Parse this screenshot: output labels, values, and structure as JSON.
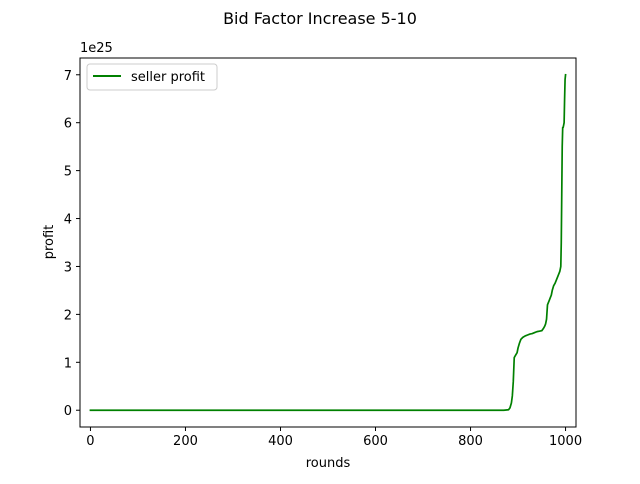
{
  "chart_data": {
    "type": "line",
    "title": "Bid Factor Increase 5-10",
    "xlabel": "rounds",
    "ylabel": "profit",
    "y_offset_label": "1e25",
    "y_multiplier": 1e+25,
    "xlim": [
      -22,
      1022
    ],
    "ylim": [
      -0.35,
      7.35
    ],
    "x_ticks": [
      0,
      200,
      400,
      600,
      800,
      1000
    ],
    "x_tick_labels": [
      "0",
      "200",
      "400",
      "600",
      "800",
      "1000"
    ],
    "y_ticks": [
      0,
      1,
      2,
      3,
      4,
      5,
      6,
      7
    ],
    "y_tick_labels": [
      "0",
      "1",
      "2",
      "3",
      "4",
      "5",
      "6",
      "7"
    ],
    "grid": false,
    "legend_position": "upper-left",
    "series": [
      {
        "name": "seller profit",
        "color": "#008000",
        "x": [
          0,
          100,
          200,
          300,
          400,
          500,
          600,
          700,
          800,
          870,
          880,
          883,
          886,
          888,
          890,
          892,
          895,
          898,
          900,
          903,
          906,
          910,
          915,
          920,
          925,
          930,
          935,
          940,
          945,
          950,
          953,
          956,
          958,
          960,
          962,
          964,
          966,
          968,
          970,
          972,
          975,
          978,
          980,
          982,
          984,
          986,
          988,
          990,
          991,
          992,
          993,
          994,
          995,
          996,
          997,
          998,
          999,
          1000
        ],
        "y": [
          0,
          0,
          0,
          0,
          0,
          0,
          0,
          0,
          0,
          0,
          0.01,
          0.05,
          0.15,
          0.3,
          0.6,
          1.1,
          1.15,
          1.2,
          1.3,
          1.4,
          1.48,
          1.52,
          1.55,
          1.57,
          1.59,
          1.6,
          1.62,
          1.64,
          1.65,
          1.66,
          1.7,
          1.75,
          1.8,
          1.9,
          2.2,
          2.25,
          2.3,
          2.35,
          2.4,
          2.5,
          2.6,
          2.65,
          2.7,
          2.75,
          2.8,
          2.85,
          2.9,
          3.0,
          3.5,
          4.5,
          5.5,
          5.9,
          5.9,
          5.95,
          6.0,
          6.5,
          6.9,
          7.0
        ]
      }
    ]
  }
}
